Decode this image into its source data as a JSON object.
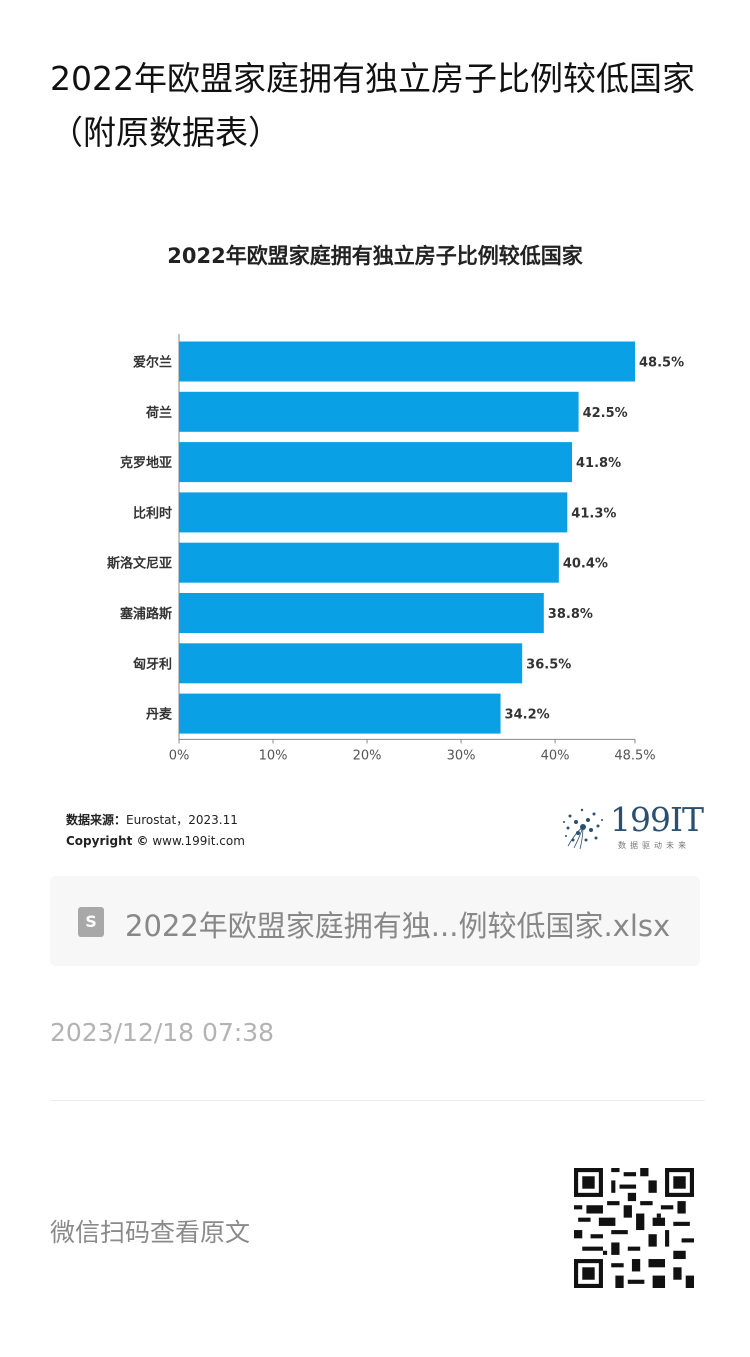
{
  "article": {
    "title": "2022年欧盟家庭拥有独立房子比例较低国家（附原数据表）"
  },
  "chart_data": {
    "type": "bar",
    "orientation": "horizontal",
    "title": "2022年欧盟家庭拥有独立房子比例较低国家",
    "categories": [
      "爱尔兰",
      "荷兰",
      "克罗地亚",
      "比利时",
      "斯洛文尼亚",
      "塞浦路斯",
      "匈牙利",
      "丹麦"
    ],
    "values": [
      48.5,
      42.5,
      41.8,
      41.3,
      40.4,
      38.8,
      36.5,
      34.2
    ],
    "value_labels": [
      "48.5%",
      "42.5%",
      "41.8%",
      "41.3%",
      "40.4%",
      "38.8%",
      "36.5%",
      "34.2%"
    ],
    "xlim": [
      0,
      48.5
    ],
    "x_ticks": [
      0,
      10,
      20,
      30,
      40,
      48.5
    ],
    "x_tick_labels": [
      "0%",
      "10%",
      "20%",
      "30%",
      "40%",
      "48.5%"
    ],
    "bar_color": "#0aa0e6",
    "grid": false,
    "legend": "none"
  },
  "chart_footer": {
    "source_label": "数据来源：",
    "source_value": "Eurostat，2023.11",
    "copyright_label": "Copyright ©",
    "copyright_value": " www.199it.com"
  },
  "logo": {
    "text": "199IT",
    "tagline": "数据驱动未来"
  },
  "attachment": {
    "icon": "spreadsheet-file-icon",
    "name": "2022年欧盟家庭拥有独...例较低国家.xlsx"
  },
  "meta": {
    "date": "2023/12/18 07:38"
  },
  "footer": {
    "scan_text": "微信扫码查看原文",
    "qr_icon": "qr-code-icon"
  }
}
